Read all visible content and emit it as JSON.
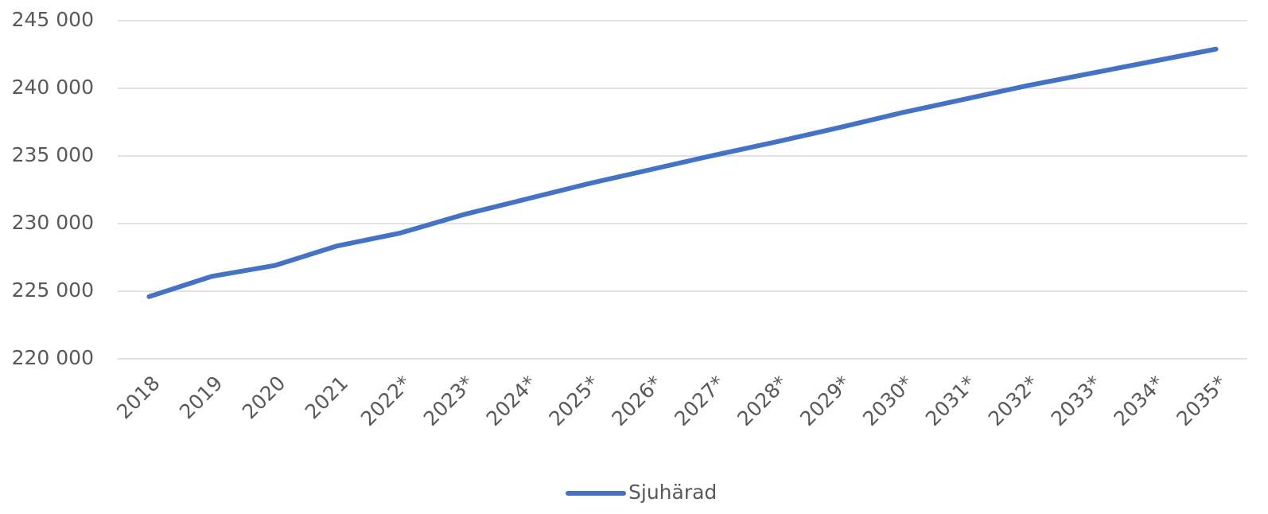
{
  "chart_data": {
    "type": "line",
    "categories": [
      "2018",
      "2019",
      "2020",
      "2021",
      "2022*",
      "2023*",
      "2024*",
      "2025*",
      "2026*",
      "2027*",
      "2028*",
      "2029*",
      "2030*",
      "2031*",
      "2032*",
      "2033*",
      "2034*",
      "2035*"
    ],
    "series": [
      {
        "name": "Sjuhärad",
        "color": "#4472c4",
        "values": [
          224600,
          226100,
          226900,
          228350,
          229300,
          230650,
          231800,
          232950,
          234000,
          235050,
          236050,
          237100,
          238200,
          239200,
          240200,
          241100,
          242000,
          242900
        ]
      }
    ],
    "ylim": [
      220000,
      245000
    ],
    "yticks": [
      {
        "value": 220000,
        "label": "220 000"
      },
      {
        "value": 225000,
        "label": "225 000"
      },
      {
        "value": 230000,
        "label": "230 000"
      },
      {
        "value": 235000,
        "label": "235 000"
      },
      {
        "value": 240000,
        "label": "240 000"
      },
      {
        "value": 245000,
        "label": "245 000"
      }
    ],
    "grid": true,
    "legend": "bottom"
  }
}
